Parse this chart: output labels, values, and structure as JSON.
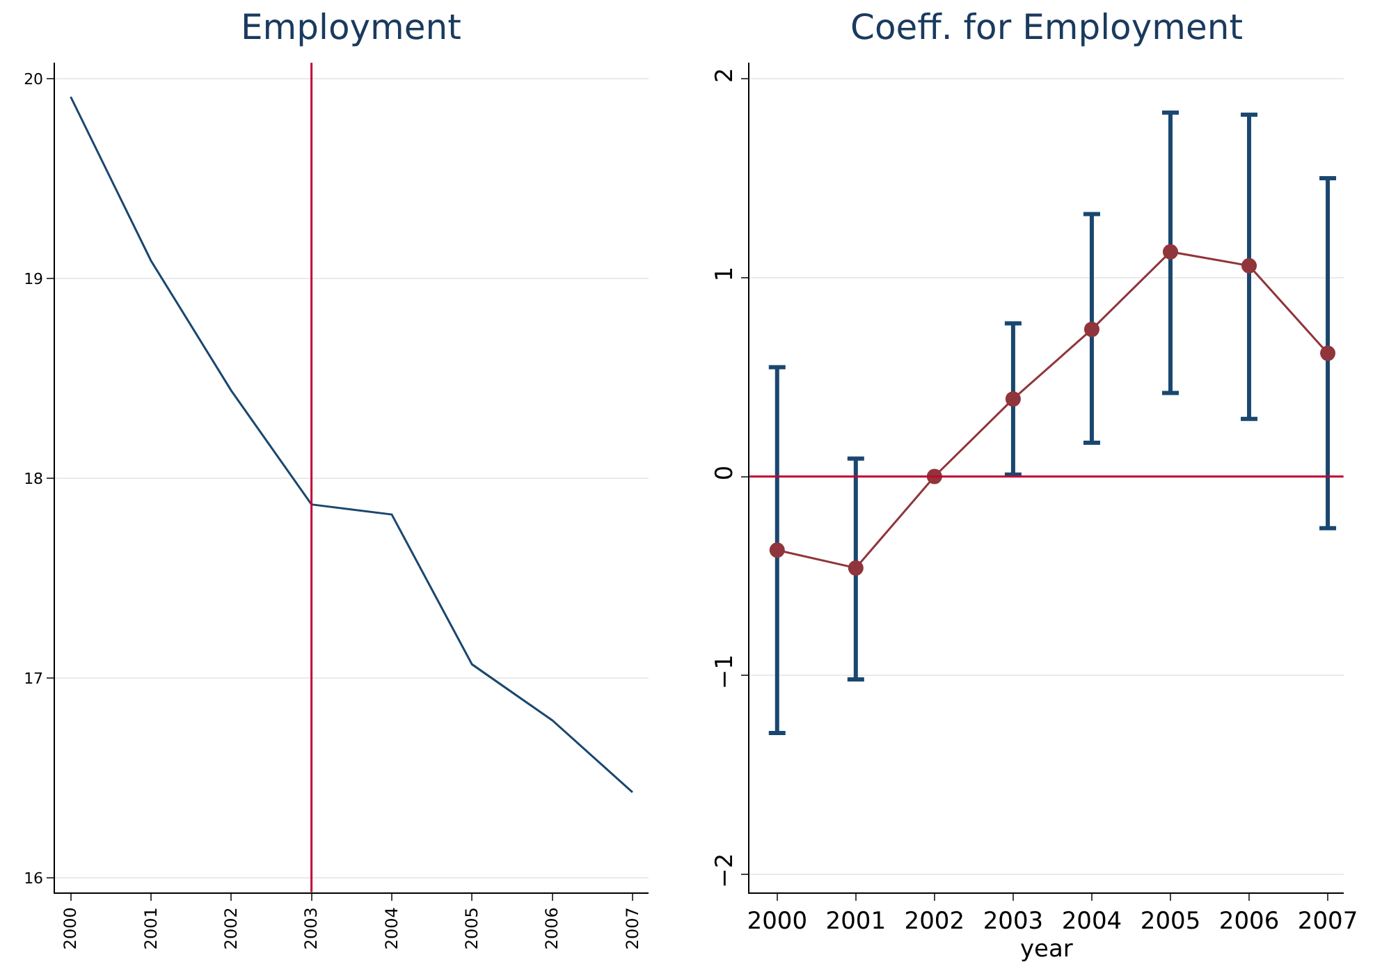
{
  "chart_data": [
    {
      "type": "line",
      "title": "Employment",
      "x": [
        2000,
        2001,
        2002,
        2003,
        2004,
        2005,
        2006,
        2007
      ],
      "series": [
        {
          "color": "#1a476f",
          "values": [
            19.91,
            19.09,
            18.44,
            17.87,
            17.82,
            17.07,
            16.79,
            16.43
          ]
        }
      ],
      "xlim": [
        1999.8,
        2007.2
      ],
      "xticks": [
        2000,
        2001,
        2002,
        2003,
        2004,
        2005,
        2006,
        2007
      ],
      "ylim": [
        15.93,
        20.08
      ],
      "yticks": [
        16,
        17,
        18,
        19,
        20
      ],
      "grid": "y",
      "marker": "none",
      "ref_lines": [
        {
          "axis": "x",
          "value": 2003,
          "color": "#c10534"
        }
      ]
    },
    {
      "type": "line",
      "title": "Coeff. for Employment",
      "xlabel": "year",
      "x": [
        2000,
        2001,
        2002,
        2003,
        2004,
        2005,
        2006,
        2007
      ],
      "series": [
        {
          "color": "#90353b",
          "values": [
            -0.37,
            -0.46,
            0,
            0.39,
            0.74,
            1.13,
            1.06,
            0.62
          ],
          "errors": [
            [
              -1.29,
              0.55
            ],
            [
              -1.02,
              0.09
            ],
            null,
            [
              0.01,
              0.77
            ],
            [
              0.17,
              1.32
            ],
            [
              0.42,
              1.83
            ],
            [
              0.29,
              1.82
            ],
            [
              -0.26,
              1.5
            ]
          ]
        }
      ],
      "xlim": [
        1999.65,
        2007.2
      ],
      "xticks": [
        2000,
        2001,
        2002,
        2003,
        2004,
        2005,
        2006,
        2007
      ],
      "ylim": [
        -2.09,
        2.08
      ],
      "yticks": [
        {
          "value": -2,
          "label": "−2"
        },
        {
          "value": -1,
          "label": "−1"
        },
        0,
        1,
        2
      ],
      "grid": "y",
      "marker": "circle",
      "ref_lines": [
        {
          "axis": "y",
          "value": 0,
          "color": "#c10534"
        }
      ]
    }
  ]
}
